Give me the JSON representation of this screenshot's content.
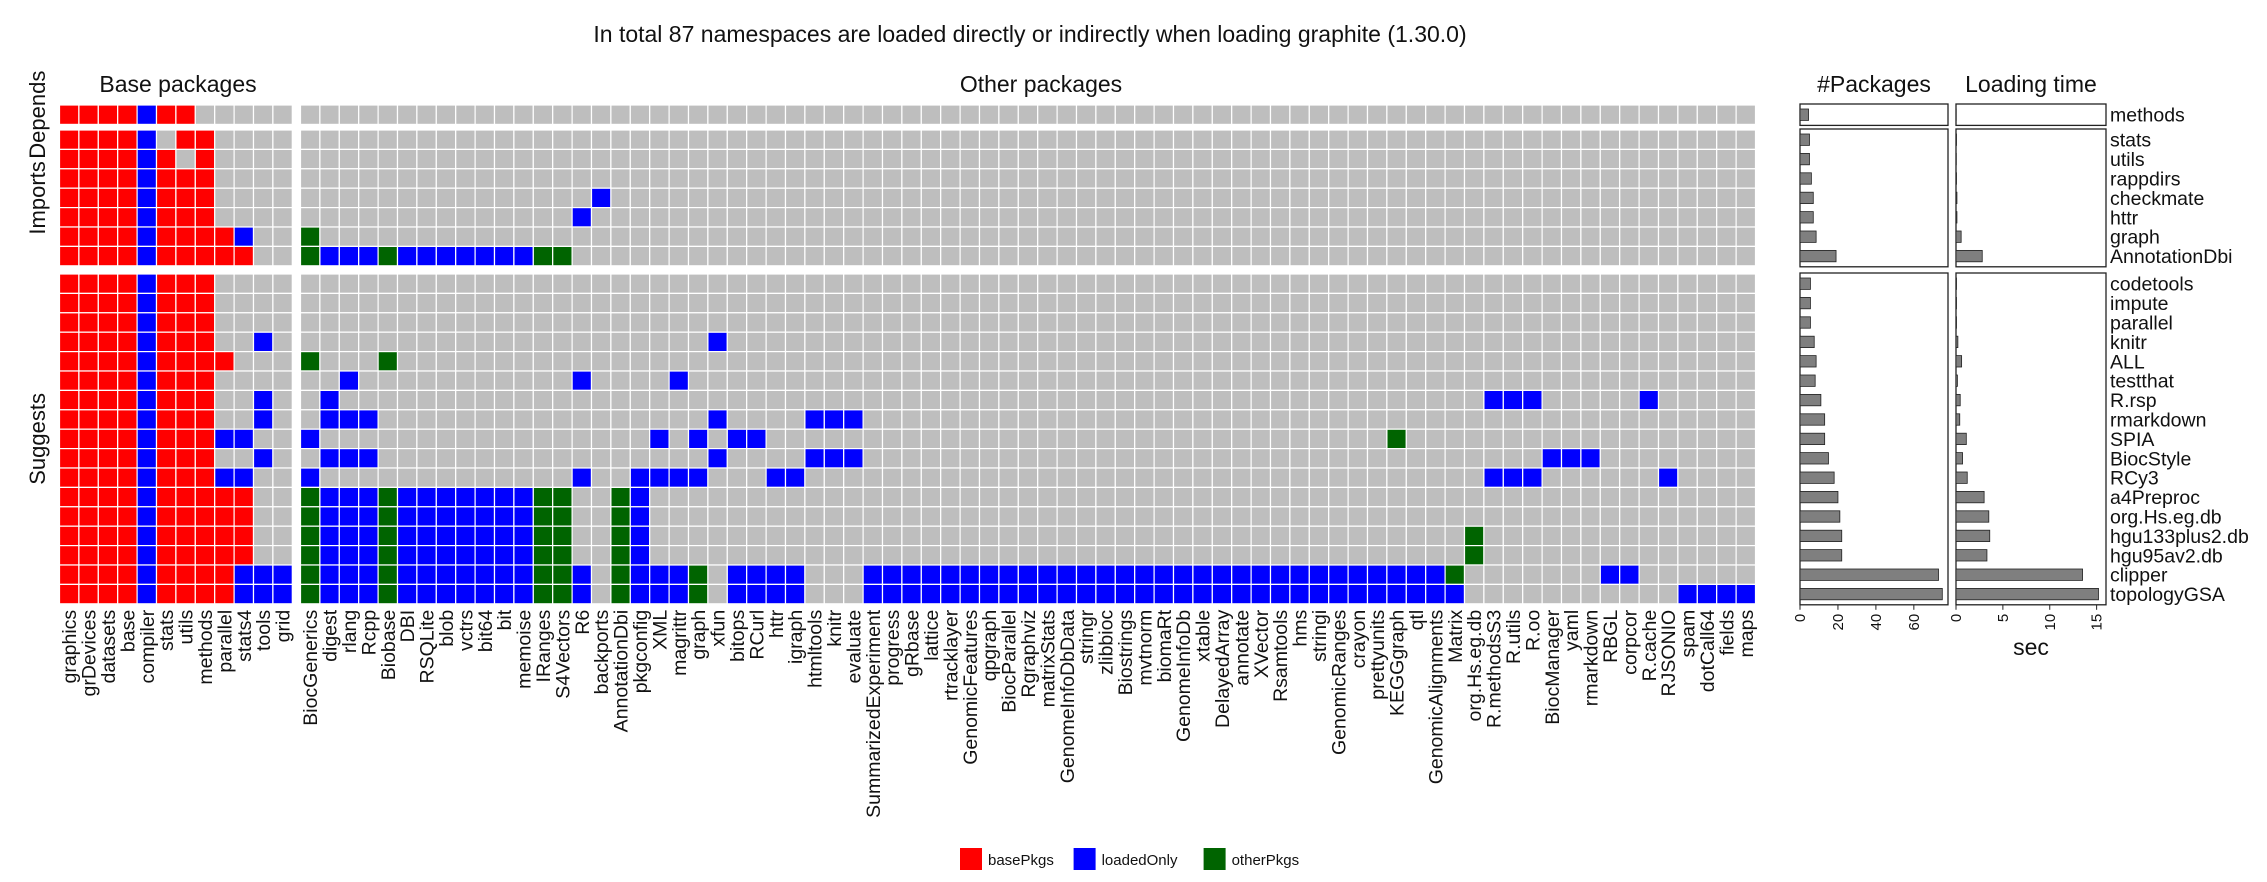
{
  "chart_data": {
    "type": "heatmap",
    "title": "In total 87 namespaces are loaded directly or indirectly when loading graphite (1.30.0)",
    "column_groups": {
      "base": "Base packages",
      "other": "Other packages"
    },
    "row_groups": [
      "Depends",
      "Imports",
      "Suggests"
    ],
    "base_columns": [
      "graphics",
      "grDevices",
      "datasets",
      "base",
      "compiler",
      "stats",
      "utils",
      "methods",
      "parallel",
      "stats4",
      "tools",
      "grid"
    ],
    "other_columns": [
      "BiocGenerics",
      "digest",
      "rlang",
      "Rcpp",
      "Biobase",
      "DBI",
      "RSQLite",
      "blob",
      "vctrs",
      "bit64",
      "bit",
      "memoise",
      "IRanges",
      "S4Vectors",
      "R6",
      "backports",
      "AnnotationDbi",
      "pkgconfig",
      "XML",
      "magrittr",
      "graph",
      "xfun",
      "bitops",
      "RCurl",
      "httr",
      "igraph",
      "htmltools",
      "knitr",
      "evaluate",
      "SummarizedExperiment",
      "progress",
      "gRbase",
      "lattice",
      "rtracklayer",
      "GenomicFeatures",
      "qpgraph",
      "BiocParallel",
      "Rgraphviz",
      "matrixStats",
      "GenomeInfoDbData",
      "stringr",
      "zlibbioc",
      "Biostrings",
      "mvtnorm",
      "biomaRt",
      "GenomeInfoDb",
      "xtable",
      "DelayedArray",
      "annotate",
      "XVector",
      "Rsamtools",
      "hms",
      "stringi",
      "GenomicRanges",
      "crayon",
      "prettyunits",
      "KEGGgraph",
      "qtl",
      "GenomicAlignments",
      "Matrix",
      "org.Hs.eg.db",
      "R.methodsS3",
      "R.utils",
      "R.oo",
      "BiocManager",
      "yaml",
      "rmarkdown",
      "RBGL",
      "corpcor",
      "R.cache",
      "RJSONIO",
      "spam",
      "dotCall64",
      "fields",
      "maps"
    ],
    "rows": [
      {
        "name": "methods",
        "group": "Depends",
        "pkgs": 4.5,
        "time": 0.02,
        "base": "RRRRBRRNNNNN",
        "other": {}
      },
      {
        "name": "stats",
        "group": "Imports",
        "pkgs": 5,
        "time": 0.05,
        "base": "RRRRBNRRNNNN",
        "other": {}
      },
      {
        "name": "utils",
        "group": "Imports",
        "pkgs": 5,
        "time": 0.03,
        "base": "RRRRBRNRNNNN",
        "other": {}
      },
      {
        "name": "rappdirs",
        "group": "Imports",
        "pkgs": 6,
        "time": 0.05,
        "base": "RRRRBRRRNNNN",
        "other": {}
      },
      {
        "name": "checkmate",
        "group": "Imports",
        "pkgs": 7,
        "time": 0.1,
        "base": "RRRRBRRRNNNN",
        "other": {
          "backports": "B"
        }
      },
      {
        "name": "httr",
        "group": "Imports",
        "pkgs": 7,
        "time": 0.1,
        "base": "RRRRBRRRNNNN",
        "other": {
          "R6": "B"
        }
      },
      {
        "name": "graph",
        "group": "Imports",
        "pkgs": 8.5,
        "time": 0.55,
        "base": "RRRRBRRRRBNN",
        "other": {
          "BiocGenerics": "G"
        }
      },
      {
        "name": "AnnotationDbi",
        "group": "Imports",
        "pkgs": 19,
        "time": 2.8,
        "base": "RRRRBRRRRRNN",
        "other": {
          "BiocGenerics": "G",
          "digest": "B",
          "rlang": "B",
          "Rcpp": "B",
          "Biobase": "G",
          "DBI": "B",
          "RSQLite": "B",
          "blob": "B",
          "vctrs": "B",
          "bit64": "B",
          "bit": "B",
          "memoise": "B",
          "IRanges": "G",
          "S4Vectors": "G"
        }
      },
      {
        "name": "codetools",
        "group": "Suggests",
        "pkgs": 5.5,
        "time": 0.05,
        "base": "RRRRBRRRNNNN",
        "other": {}
      },
      {
        "name": "impute",
        "group": "Suggests",
        "pkgs": 5.5,
        "time": 0.05,
        "base": "RRRRBRRRNNNN",
        "other": {}
      },
      {
        "name": "parallel",
        "group": "Suggests",
        "pkgs": 5.5,
        "time": 0.05,
        "base": "RRRRBRRRNNNN",
        "other": {}
      },
      {
        "name": "knitr",
        "group": "Suggests",
        "pkgs": 7.5,
        "time": 0.2,
        "base": "RRRRBRRRNNBN",
        "other": {
          "xfun": "B"
        }
      },
      {
        "name": "ALL",
        "group": "Suggests",
        "pkgs": 8.5,
        "time": 0.6,
        "base": "RRRRBRRRRNNN",
        "other": {
          "BiocGenerics": "G",
          "Biobase": "G"
        }
      },
      {
        "name": "testthat",
        "group": "Suggests",
        "pkgs": 8,
        "time": 0.15,
        "base": "RRRRBRRRNNNN",
        "other": {
          "rlang": "B",
          "R6": "B",
          "magrittr": "B"
        }
      },
      {
        "name": "R.rsp",
        "group": "Suggests",
        "pkgs": 11,
        "time": 0.45,
        "base": "RRRRBRRRNNBN",
        "other": {
          "digest": "B",
          "R.methodsS3": "B",
          "R.utils": "B",
          "R.oo": "B",
          "R.cache": "B"
        }
      },
      {
        "name": "rmarkdown",
        "group": "Suggests",
        "pkgs": 13,
        "time": 0.4,
        "base": "RRRRBRRRNNBN",
        "other": {
          "digest": "B",
          "rlang": "B",
          "Rcpp": "B",
          "xfun": "B",
          "htmltools": "B",
          "knitr": "B",
          "evaluate": "B"
        }
      },
      {
        "name": "SPIA",
        "group": "Suggests",
        "pkgs": 13,
        "time": 1.1,
        "base": "RRRRBRRRBBNN",
        "other": {
          "BiocGenerics": "B",
          "XML": "B",
          "graph": "B",
          "bitops": "B",
          "RCurl": "B",
          "KEGGgraph": "G"
        }
      },
      {
        "name": "BiocStyle",
        "group": "Suggests",
        "pkgs": 15,
        "time": 0.7,
        "base": "RRRRBRRRNNBN",
        "other": {
          "digest": "B",
          "rlang": "B",
          "Rcpp": "B",
          "xfun": "B",
          "htmltools": "B",
          "knitr": "B",
          "evaluate": "B",
          "BiocManager": "B",
          "yaml": "B",
          "rmarkdown": "B"
        }
      },
      {
        "name": "RCy3",
        "group": "Suggests",
        "pkgs": 18,
        "time": 1.2,
        "base": "RRRRBRRRBBNN",
        "other": {
          "BiocGenerics": "B",
          "R6": "B",
          "pkgconfig": "B",
          "XML": "B",
          "magrittr": "B",
          "graph": "B",
          "httr": "B",
          "igraph": "B",
          "R.methodsS3": "B",
          "R.utils": "B",
          "R.oo": "B",
          "RJSONIO": "B"
        }
      },
      {
        "name": "a4Preproc",
        "group": "Suggests",
        "pkgs": 20,
        "time": 3.0,
        "base": "RRRRBRRRRRNN",
        "other": {
          "BiocGenerics": "G",
          "digest": "B",
          "rlang": "B",
          "Rcpp": "B",
          "Biobase": "G",
          "DBI": "B",
          "RSQLite": "B",
          "blob": "B",
          "vctrs": "B",
          "bit64": "B",
          "bit": "B",
          "memoise": "B",
          "IRanges": "G",
          "S4Vectors": "G",
          "AnnotationDbi": "G",
          "pkgconfig": "B"
        }
      },
      {
        "name": "org.Hs.eg.db",
        "group": "Suggests",
        "pkgs": 21,
        "time": 3.5,
        "base": "RRRRBRRRRRNN",
        "other": {
          "BiocGenerics": "G",
          "digest": "B",
          "rlang": "B",
          "Rcpp": "B",
          "Biobase": "G",
          "DBI": "B",
          "RSQLite": "B",
          "blob": "B",
          "vctrs": "B",
          "bit64": "B",
          "bit": "B",
          "memoise": "B",
          "IRanges": "G",
          "S4Vectors": "G",
          "AnnotationDbi": "G",
          "pkgconfig": "B"
        }
      },
      {
        "name": "hgu133plus2.db",
        "group": "Suggests",
        "pkgs": 22,
        "time": 3.6,
        "base": "RRRRBRRRRRNN",
        "other": {
          "BiocGenerics": "G",
          "digest": "B",
          "rlang": "B",
          "Rcpp": "B",
          "Biobase": "G",
          "DBI": "B",
          "RSQLite": "B",
          "blob": "B",
          "vctrs": "B",
          "bit64": "B",
          "bit": "B",
          "memoise": "B",
          "IRanges": "G",
          "S4Vectors": "G",
          "AnnotationDbi": "G",
          "pkgconfig": "B",
          "org.Hs.eg.db": "G"
        }
      },
      {
        "name": "hgu95av2.db",
        "group": "Suggests",
        "pkgs": 22,
        "time": 3.3,
        "base": "RRRRBRRRRRNN",
        "other": {
          "BiocGenerics": "G",
          "digest": "B",
          "rlang": "B",
          "Rcpp": "B",
          "Biobase": "G",
          "DBI": "B",
          "RSQLite": "B",
          "blob": "B",
          "vctrs": "B",
          "bit64": "B",
          "bit": "B",
          "memoise": "B",
          "IRanges": "G",
          "S4Vectors": "G",
          "AnnotationDbi": "G",
          "pkgconfig": "B",
          "org.Hs.eg.db": "G"
        }
      },
      {
        "name": "clipper",
        "group": "Suggests",
        "pkgs": 73,
        "time": 13.5,
        "base": "RRRRBRRRRBBB",
        "other": {
          "BiocGenerics": "G",
          "digest": "B",
          "rlang": "B",
          "Rcpp": "B",
          "Biobase": "G",
          "DBI": "B",
          "RSQLite": "B",
          "blob": "B",
          "vctrs": "B",
          "bit64": "B",
          "bit": "B",
          "memoise": "B",
          "IRanges": "G",
          "S4Vectors": "G",
          "R6": "B",
          "AnnotationDbi": "G",
          "pkgconfig": "B",
          "XML": "B",
          "magrittr": "B",
          "graph": "G",
          "bitops": "B",
          "RCurl": "B",
          "httr": "B",
          "igraph": "B",
          "SummarizedExperiment": "B",
          "progress": "B",
          "gRbase": "B",
          "lattice": "B",
          "rtracklayer": "B",
          "GenomicFeatures": "B",
          "qpgraph": "B",
          "BiocParallel": "B",
          "Rgraphviz": "B",
          "matrixStats": "B",
          "GenomeInfoDbData": "B",
          "stringr": "B",
          "zlibbioc": "B",
          "Biostrings": "B",
          "mvtnorm": "B",
          "biomaRt": "B",
          "GenomeInfoDb": "B",
          "xtable": "B",
          "DelayedArray": "B",
          "annotate": "B",
          "XVector": "B",
          "Rsamtools": "B",
          "hms": "B",
          "stringi": "B",
          "GenomicRanges": "B",
          "crayon": "B",
          "prettyunits": "B",
          "KEGGgraph": "B",
          "qtl": "B",
          "GenomicAlignments": "B",
          "Matrix": "G",
          "RBGL": "B",
          "corpcor": "B"
        }
      },
      {
        "name": "topologyGSA",
        "group": "Suggests",
        "pkgs": 75,
        "time": 15.2,
        "base": "RRRRBRRRRBBB",
        "other": {
          "BiocGenerics": "G",
          "digest": "B",
          "rlang": "B",
          "Rcpp": "B",
          "Biobase": "G",
          "DBI": "B",
          "RSQLite": "B",
          "blob": "B",
          "vctrs": "B",
          "bit64": "B",
          "bit": "B",
          "memoise": "B",
          "IRanges": "G",
          "S4Vectors": "G",
          "R6": "B",
          "AnnotationDbi": "G",
          "pkgconfig": "B",
          "XML": "B",
          "magrittr": "B",
          "graph": "G",
          "bitops": "B",
          "RCurl": "B",
          "httr": "B",
          "igraph": "B",
          "SummarizedExperiment": "B",
          "progress": "B",
          "gRbase": "B",
          "lattice": "B",
          "rtracklayer": "B",
          "GenomicFeatures": "B",
          "qpgraph": "B",
          "BiocParallel": "B",
          "Rgraphviz": "B",
          "matrixStats": "B",
          "GenomeInfoDbData": "B",
          "stringr": "B",
          "zlibbioc": "B",
          "Biostrings": "B",
          "mvtnorm": "B",
          "biomaRt": "B",
          "GenomeInfoDb": "B",
          "xtable": "B",
          "DelayedArray": "B",
          "annotate": "B",
          "XVector": "B",
          "Rsamtools": "B",
          "hms": "B",
          "stringi": "B",
          "GenomicRanges": "B",
          "crayon": "B",
          "prettyunits": "B",
          "KEGGgraph": "B",
          "qtl": "B",
          "GenomicAlignments": "B",
          "Matrix": "B",
          "spam": "B",
          "dotCall64": "B",
          "fields": "B",
          "maps": "B"
        }
      }
    ],
    "bar_panels": {
      "packages": {
        "title": "#Packages",
        "xlabel": "",
        "ticks": [
          0,
          20,
          40,
          60
        ],
        "xlim": [
          0,
          78
        ]
      },
      "time": {
        "title": "Loading time",
        "xlabel": "sec",
        "ticks": [
          0,
          5,
          10,
          15
        ],
        "xlim": [
          0,
          16
        ]
      }
    },
    "legend": {
      "placement": "bottom-center",
      "items": [
        {
          "code": "R",
          "label": "basePkgs",
          "color": "#ff0000"
        },
        {
          "code": "B",
          "label": "loadedOnly",
          "color": "#0000ff"
        },
        {
          "code": "G",
          "label": "otherPkgs",
          "color": "#006400"
        }
      ]
    },
    "empty_color": "#bebebe",
    "bar_color": "#7f7f7f"
  }
}
